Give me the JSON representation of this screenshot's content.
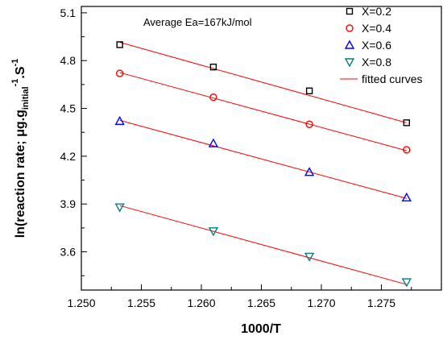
{
  "chart_data": {
    "type": "scatter",
    "xlabel": "1000/T",
    "ylabel": {
      "main": "ln(reaction rate; ",
      "unit_prefix": "μg.g",
      "unit_sub": "initial",
      "unit_sup1": "-1",
      "unit_mid": ".S",
      "unit_sup2": "-1"
    },
    "annotation": "Average Ea=167kJ/mol",
    "xlim": [
      1.25,
      1.28
    ],
    "ylim": [
      3.36,
      5.14
    ],
    "x_ticks": [
      "1.250",
      "1.255",
      "1.260",
      "1.265",
      "1.270",
      "1.275"
    ],
    "x_tick_values": [
      1.25,
      1.255,
      1.26,
      1.265,
      1.27,
      1.275
    ],
    "y_ticks": [
      "3.6",
      "3.9",
      "4.2",
      "4.5",
      "4.8",
      "5.1"
    ],
    "y_tick_values": [
      3.6,
      3.9,
      4.2,
      4.5,
      4.8,
      5.1
    ],
    "x": [
      1.2532,
      1.261,
      1.269,
      1.2771
    ],
    "series": [
      {
        "name": "X=0.2",
        "marker": "square",
        "color": "#000000",
        "values": [
          4.9,
          4.76,
          4.61,
          4.41
        ],
        "fit": [
          4.915,
          4.41
        ]
      },
      {
        "name": "X=0.4",
        "marker": "circle",
        "color": "#ff0000",
        "values": [
          4.72,
          4.57,
          4.4,
          4.24
        ],
        "fit": [
          4.725,
          4.235
        ]
      },
      {
        "name": "X=0.6",
        "marker": "triangle-up",
        "color": "#0000ff",
        "values": [
          4.42,
          4.28,
          4.1,
          3.94
        ],
        "fit": [
          4.425,
          3.935
        ]
      },
      {
        "name": "X=0.8",
        "marker": "triangle-down",
        "color": "#008080",
        "values": [
          3.88,
          3.73,
          3.57,
          3.41
        ],
        "fit": [
          3.89,
          3.395
        ]
      }
    ],
    "fit_legend": "fitted curves",
    "fit_color": "#ff0000",
    "legend": "top-right",
    "grid": false
  }
}
